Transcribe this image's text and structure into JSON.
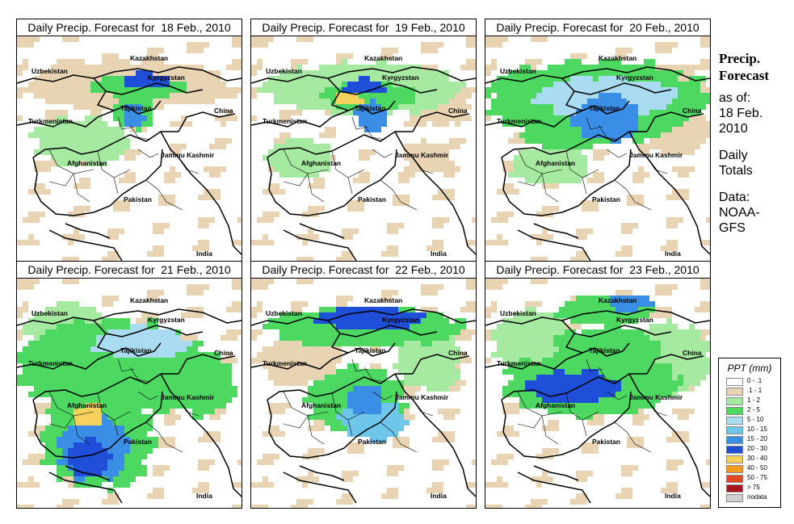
{
  "panels": [
    {
      "title": "Daily Precip. Forecast for  18 Feb., 2010",
      "pattern": "d18"
    },
    {
      "title": "Daily Precip. Forecast for  19 Feb., 2010",
      "pattern": "d19"
    },
    {
      "title": "Daily Precip. Forecast for  20 Feb., 2010",
      "pattern": "d20"
    },
    {
      "title": "Daily Precip. Forecast for  21 Feb., 2010",
      "pattern": "d21"
    },
    {
      "title": "Daily Precip. Forecast for  22 Feb., 2010",
      "pattern": "d22"
    },
    {
      "title": "Daily Precip. Forecast for  23 Feb., 2010",
      "pattern": "d23"
    }
  ],
  "map_labels": {
    "kazakhstan": "Kazakhstan",
    "uzbekistan": "Uzbekistan",
    "kyrgyzstan": "Kyrgyzstan",
    "tajikistan": "Tajikistan",
    "china": "China",
    "turkmenistan": "Turkmenistan",
    "jammu_kashmir": "Jammu Kashmir",
    "afghanistan": "Afghanistan",
    "pakistan": "Pakistan",
    "india": "India"
  },
  "side": {
    "title_line1": "Precip.",
    "title_line2": "Forecast",
    "asof_line1": "as of:",
    "asof_line2": "18 Feb.",
    "asof_line3": "2010",
    "totals_line1": "Daily",
    "totals_line2": "Totals",
    "data_line1": "Data:",
    "data_line2": "NOAA-",
    "data_line3": "GFS"
  },
  "legend": {
    "title": "PPT (mm)",
    "items": [
      {
        "label": "0 - .1",
        "color": "#ffffff"
      },
      {
        "label": ".1 - 1",
        "color": "#e8d4b2"
      },
      {
        "label": "1 - 2",
        "color": "#a6e9a0"
      },
      {
        "label": "2 - 5",
        "color": "#4dd861"
      },
      {
        "label": "5 - 10",
        "color": "#a9dcf0"
      },
      {
        "label": "10 - 15",
        "color": "#6ec6ea"
      },
      {
        "label": "15 - 20",
        "color": "#3b8ee6"
      },
      {
        "label": "20 - 30",
        "color": "#1f4ed8"
      },
      {
        "label": "30 - 40",
        "color": "#f6d25c"
      },
      {
        "label": "40 - 50",
        "color": "#f39a1e"
      },
      {
        "label": "50 - 75",
        "color": "#e2461f"
      },
      {
        "label": "> 75",
        "color": "#a5151b"
      },
      {
        "label": "nodata",
        "color": "#cfcfcf"
      }
    ]
  }
}
